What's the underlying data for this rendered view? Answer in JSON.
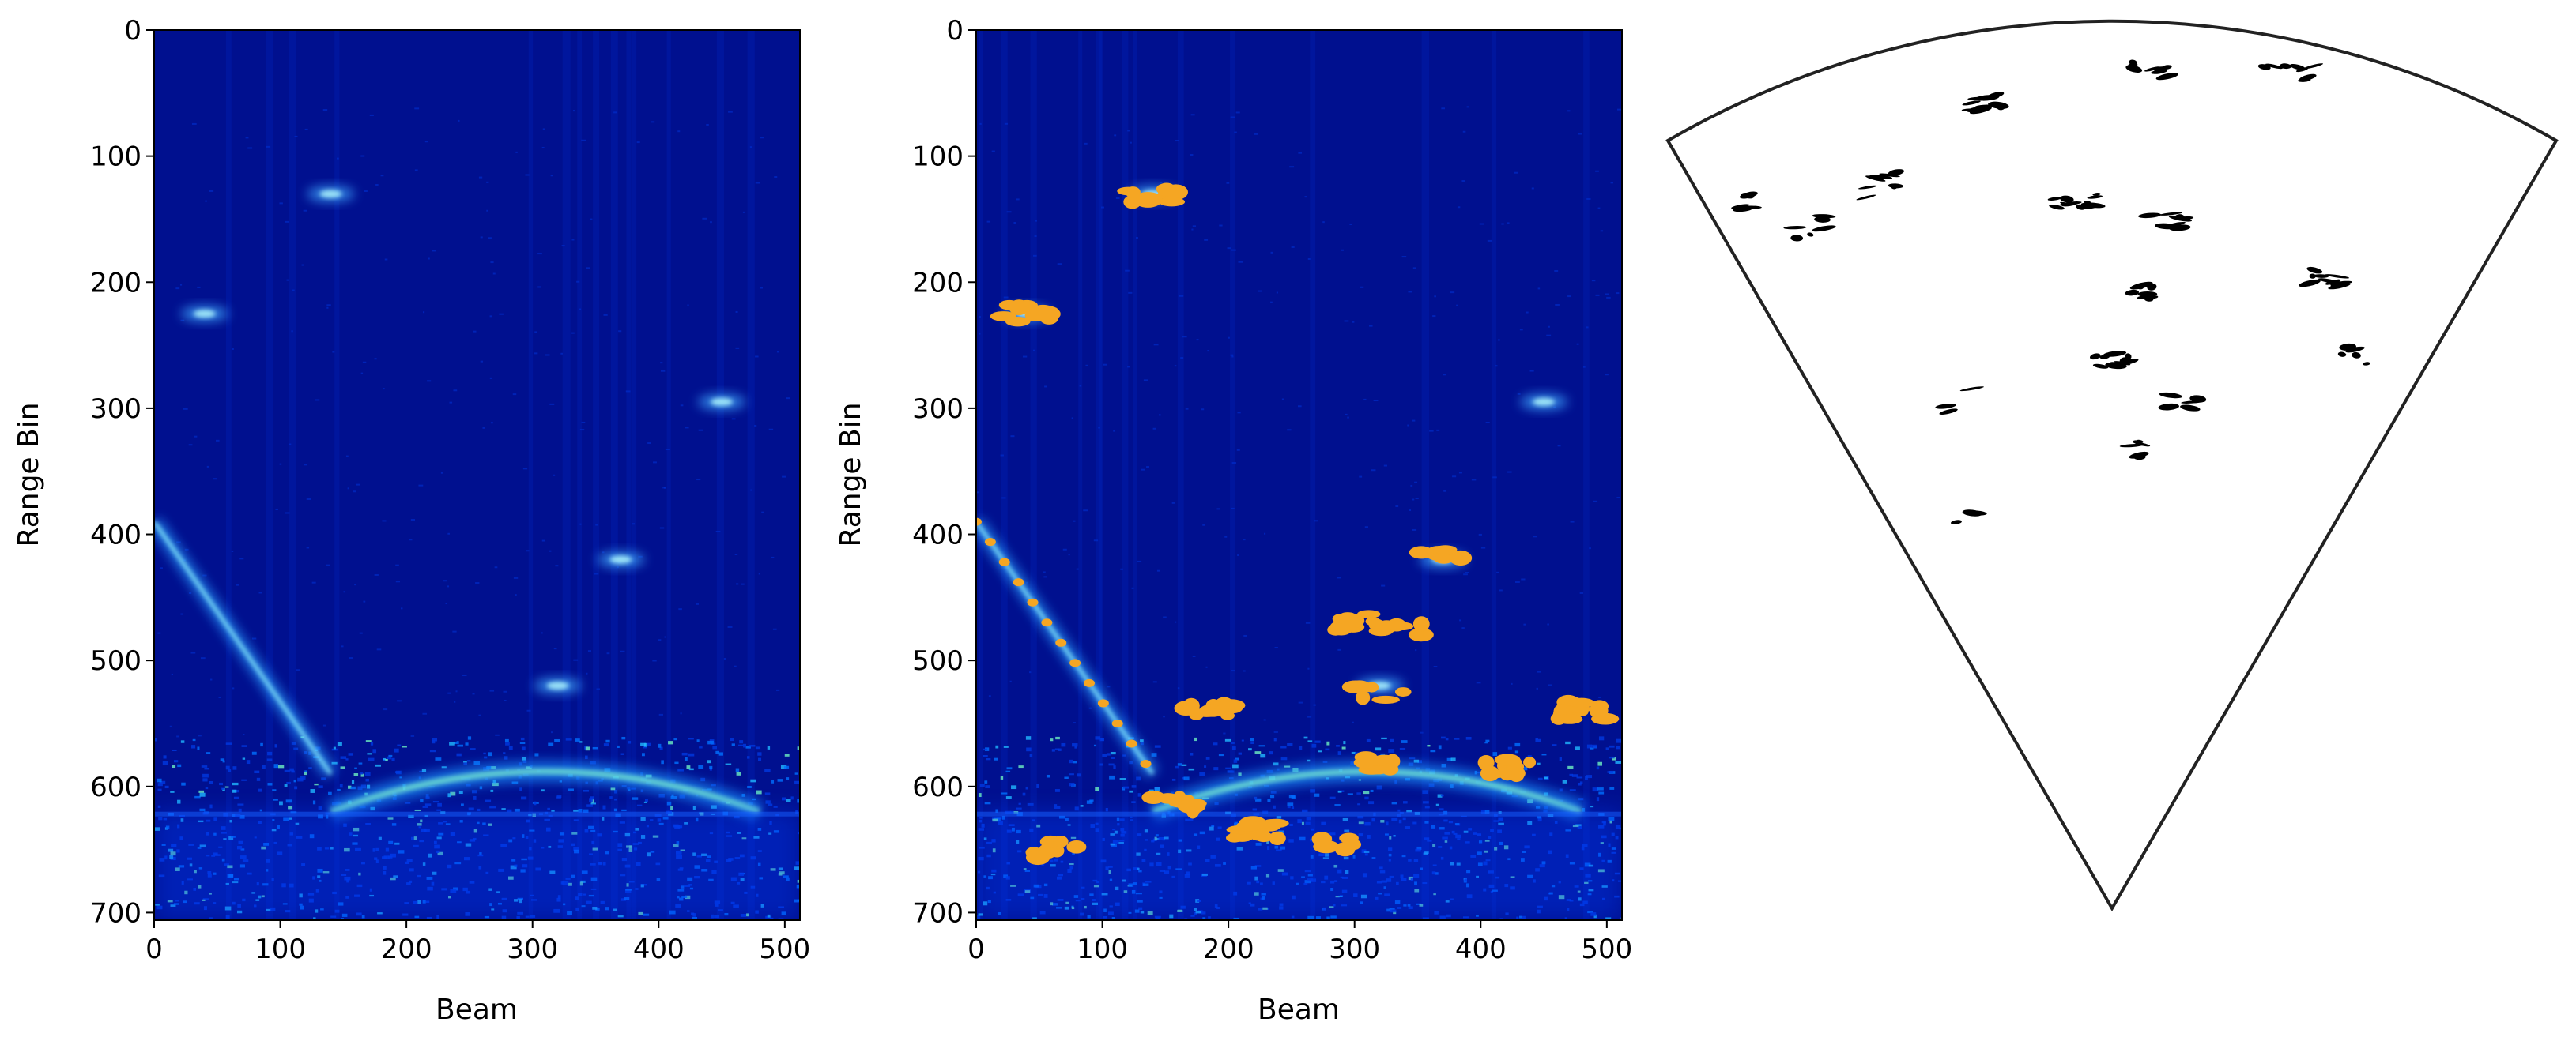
{
  "chart_data": [
    {
      "type": "heatmap",
      "title": "",
      "xlabel": "Beam",
      "ylabel": "Range Bin",
      "xlim": [
        0,
        512
      ],
      "ylim": [
        706,
        0
      ],
      "x_ticks": [
        "0",
        "100",
        "200",
        "300",
        "400",
        "500"
      ],
      "y_ticks": [
        "0",
        "100",
        "200",
        "300",
        "400",
        "500",
        "600",
        "700"
      ],
      "colormap": "jet",
      "background_color": "#00108f",
      "features": [
        {
          "kind": "diagonal-streak",
          "x": [
            0,
            140
          ],
          "y": [
            390,
            590
          ]
        },
        {
          "kind": "arc",
          "x": [
            140,
            480
          ],
          "y": [
            575,
            620
          ]
        },
        {
          "kind": "blob",
          "x": 370,
          "y": 420
        },
        {
          "kind": "blob",
          "x": 320,
          "y": 520
        },
        {
          "kind": "blob",
          "x": 40,
          "y": 225
        },
        {
          "kind": "blob",
          "x": 450,
          "y": 295
        },
        {
          "kind": "blob",
          "x": 140,
          "y": 130
        },
        {
          "kind": "noisy-band",
          "y": [
            620,
            706
          ]
        }
      ],
      "grid": false,
      "legend": "none"
    },
    {
      "type": "heatmap",
      "title": "",
      "xlabel": "Beam",
      "ylabel": "Range Bin",
      "xlim": [
        0,
        512
      ],
      "ylim": [
        706,
        0
      ],
      "x_ticks": [
        "0",
        "100",
        "200",
        "300",
        "400",
        "500"
      ],
      "y_ticks": [
        "0",
        "100",
        "200",
        "300",
        "400",
        "500",
        "600",
        "700"
      ],
      "colormap": "jet",
      "background_color": "#00108f",
      "highlight_color": "#f5a623",
      "highlighted_detections": [
        {
          "x": 370,
          "y": 418
        },
        {
          "x": 300,
          "y": 470
        },
        {
          "x": 340,
          "y": 475
        },
        {
          "x": 320,
          "y": 525
        },
        {
          "x": 40,
          "y": 225
        },
        {
          "x": 140,
          "y": 130
        },
        {
          "x": 185,
          "y": 540
        },
        {
          "x": 480,
          "y": 540
        },
        {
          "x": 320,
          "y": 580
        },
        {
          "x": 420,
          "y": 585
        },
        {
          "x": 160,
          "y": 615
        },
        {
          "x": 220,
          "y": 635
        },
        {
          "x": 60,
          "y": 650
        },
        {
          "x": 280,
          "y": 645
        }
      ],
      "grid": false,
      "legend": "none"
    },
    {
      "type": "scatter",
      "title": "",
      "xlabel": "",
      "ylabel": "",
      "projection": "polar-fan",
      "background_color": "#ffffff",
      "mark_color": "#000000",
      "legend": "none"
    }
  ]
}
